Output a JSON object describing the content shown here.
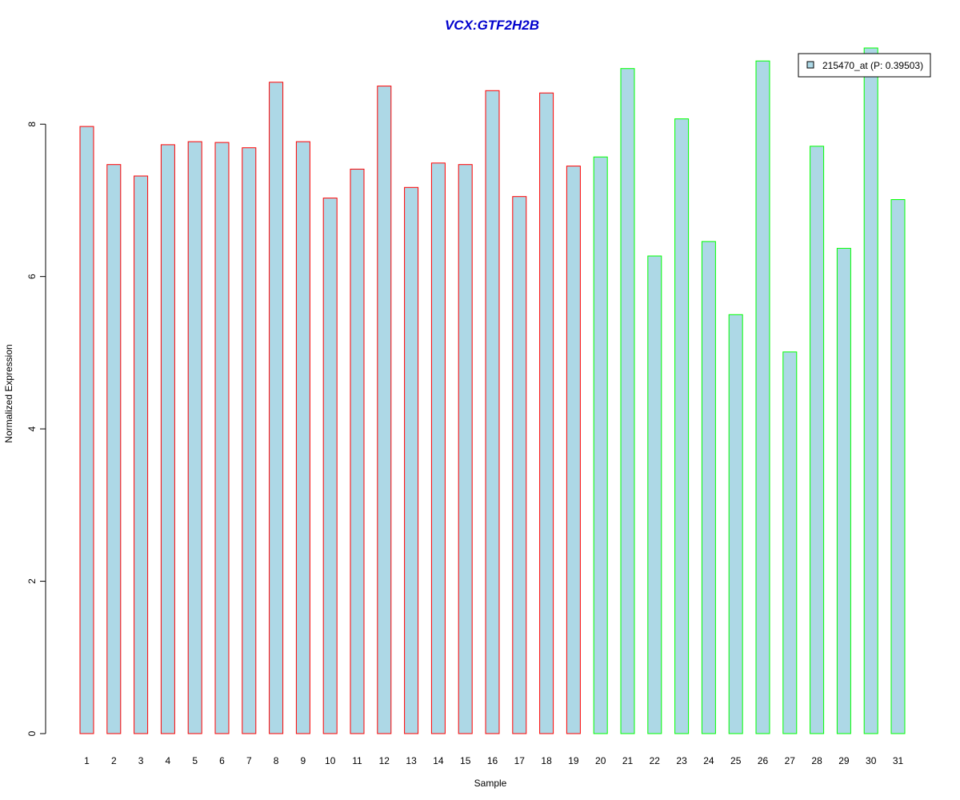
{
  "chart_data": {
    "type": "bar",
    "title": "VCX:GTF2H2B",
    "xlabel": "Sample",
    "ylabel": "Normalized Expression",
    "ylim": [
      0,
      9.0
    ],
    "yticks": [
      "0",
      "2",
      "4",
      "6",
      "8"
    ],
    "categories": [
      "1",
      "2",
      "3",
      "4",
      "5",
      "6",
      "7",
      "8",
      "9",
      "10",
      "11",
      "12",
      "13",
      "14",
      "15",
      "16",
      "17",
      "18",
      "19",
      "20",
      "21",
      "22",
      "23",
      "24",
      "25",
      "26",
      "27",
      "28",
      "29",
      "30",
      "31"
    ],
    "series": [
      {
        "name": "215470_at (P: 0.39503)",
        "values": [
          7.97,
          7.47,
          7.32,
          7.73,
          7.77,
          7.76,
          7.69,
          8.55,
          7.77,
          7.03,
          7.41,
          8.5,
          7.17,
          7.49,
          7.47,
          8.44,
          7.05,
          8.41,
          7.45,
          7.57,
          8.73,
          6.27,
          8.07,
          6.46,
          5.5,
          8.83,
          5.01,
          7.71,
          6.37,
          9.0,
          7.01
        ]
      }
    ],
    "fill_color": "#add8e6",
    "group_colors": [
      "#ff0000",
      "#00ff00"
    ],
    "group_sizes": [
      19,
      12
    ],
    "grid": false,
    "legend_position": "top-right",
    "legend_label": "215470_at (P: 0.39503)"
  },
  "colors": {
    "title": "#0000cd",
    "axis": "#000000",
    "background": "#ffffff"
  }
}
